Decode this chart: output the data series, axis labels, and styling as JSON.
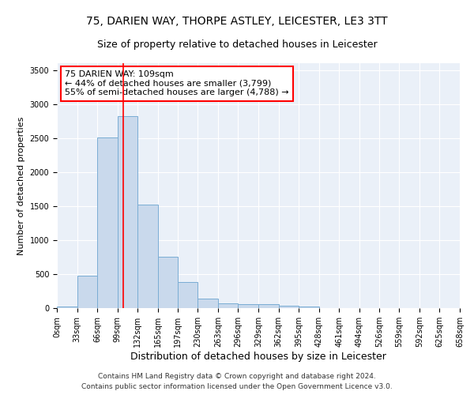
{
  "title1": "75, DARIEN WAY, THORPE ASTLEY, LEICESTER, LE3 3TT",
  "title2": "Size of property relative to detached houses in Leicester",
  "xlabel": "Distribution of detached houses by size in Leicester",
  "ylabel": "Number of detached properties",
  "bin_edges": [
    0,
    33,
    66,
    99,
    132,
    165,
    197,
    230,
    263,
    296,
    329,
    362,
    395,
    428,
    461,
    494,
    526,
    559,
    592,
    625,
    658
  ],
  "bar_heights": [
    20,
    480,
    2510,
    2820,
    1520,
    750,
    385,
    145,
    75,
    55,
    55,
    30,
    20,
    0,
    0,
    0,
    0,
    0,
    0,
    0
  ],
  "bar_color": "#c9d9ec",
  "bar_edgecolor": "#7aadd4",
  "vline_x": 109,
  "vline_color": "red",
  "annotation_line1": "75 DARIEN WAY: 109sqm",
  "annotation_line2": "← 44% of detached houses are smaller (3,799)",
  "annotation_line3": "55% of semi-detached houses are larger (4,788) →",
  "annotation_box_color": "white",
  "annotation_box_edgecolor": "red",
  "ylim": [
    0,
    3600
  ],
  "yticks": [
    0,
    500,
    1000,
    1500,
    2000,
    2500,
    3000,
    3500
  ],
  "xlim": [
    0,
    658
  ],
  "bg_color": "#eaf0f8",
  "grid_color": "white",
  "footnote1": "Contains HM Land Registry data © Crown copyright and database right 2024.",
  "footnote2": "Contains public sector information licensed under the Open Government Licence v3.0.",
  "title1_fontsize": 10,
  "title2_fontsize": 9,
  "xlabel_fontsize": 9,
  "ylabel_fontsize": 8,
  "tick_fontsize": 7,
  "annotation_fontsize": 8,
  "footnote_fontsize": 6.5
}
